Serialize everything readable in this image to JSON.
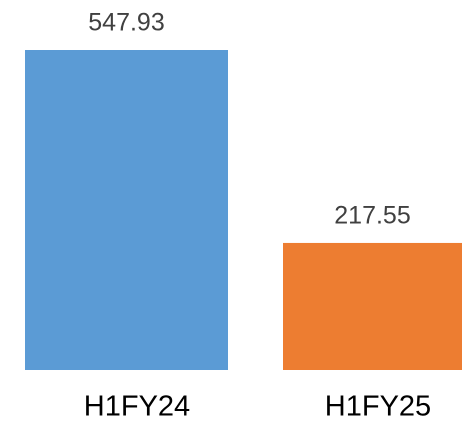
{
  "chart_data": {
    "type": "bar",
    "categories": [
      "H1FY24",
      "H1FY25"
    ],
    "values": [
      547.93,
      217.55
    ],
    "colors": [
      "#5b9bd5",
      "#ed7d31"
    ]
  }
}
